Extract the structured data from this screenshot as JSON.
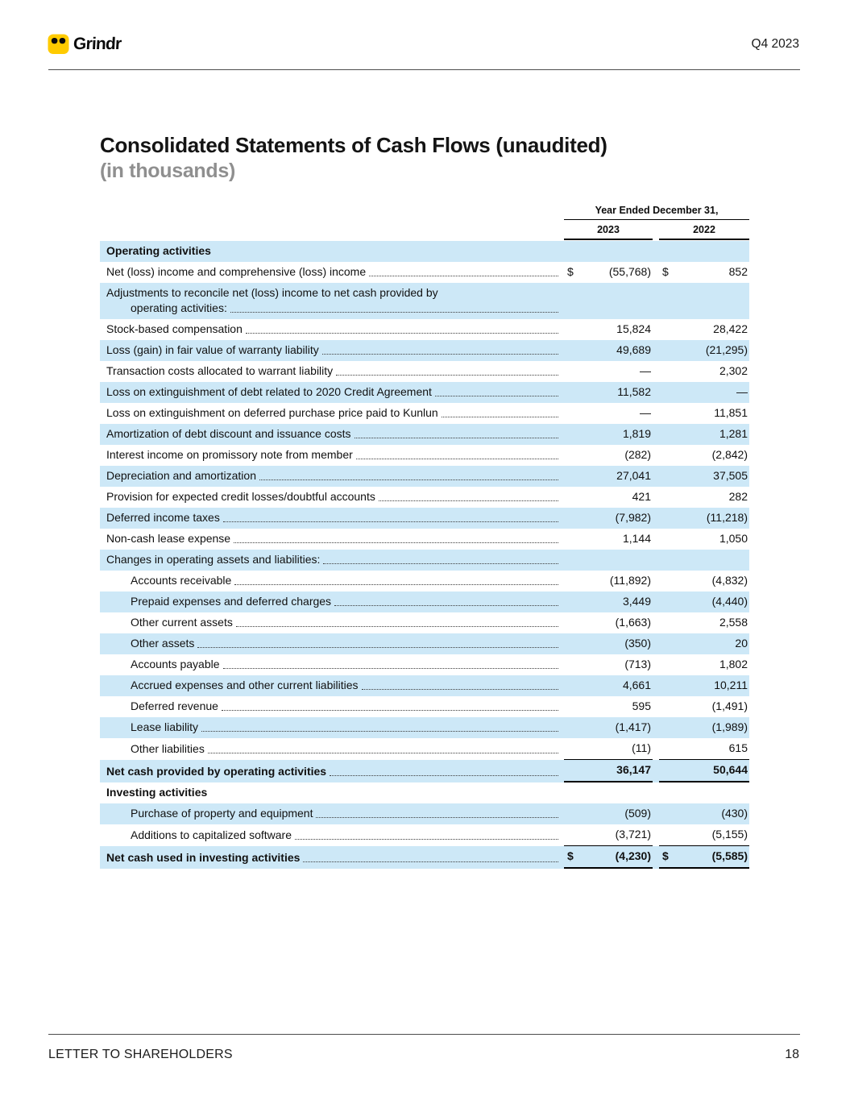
{
  "header": {
    "logo_text": "Grindr",
    "edition": "Q4 2023"
  },
  "title": {
    "main": "Consolidated Statements of Cash Flows (unaudited)",
    "sub": "(in thousands)"
  },
  "table": {
    "period_header": "Year Ended December 31,",
    "col_2023": "2023",
    "col_2022": "2022",
    "rows": [
      {
        "label": "Operating activities",
        "bold": true,
        "leader": false,
        "v2023": "",
        "v2022": ""
      },
      {
        "label": "Net (loss) income and comprehensive (loss) income",
        "dollar": true,
        "v2023": "(55,768)",
        "v2022": "852"
      },
      {
        "label": "Adjustments to reconcile net (loss) income to net cash provided by",
        "label2": "operating activities:",
        "v2023": "",
        "v2022": ""
      },
      {
        "label": "Stock-based compensation",
        "v2023": "15,824",
        "v2022": "28,422"
      },
      {
        "label": "Loss (gain) in fair value of warranty liability",
        "v2023": "49,689",
        "v2022": "(21,295)"
      },
      {
        "label": "Transaction costs allocated to warrant liability",
        "v2023": "—",
        "v2022": "2,302"
      },
      {
        "label": "Loss on extinguishment of debt related to 2020 Credit Agreement",
        "v2023": "11,582",
        "v2022": "—"
      },
      {
        "label": "Loss on extinguishment on deferred purchase price paid to Kunlun",
        "v2023": "—",
        "v2022": "11,851"
      },
      {
        "label": "Amortization of debt discount and issuance costs",
        "v2023": "1,819",
        "v2022": "1,281"
      },
      {
        "label": "Interest income on promissory note from member",
        "v2023": "(282)",
        "v2022": "(2,842)"
      },
      {
        "label": "Depreciation and amortization",
        "v2023": "27,041",
        "v2022": "37,505"
      },
      {
        "label": "Provision for expected credit losses/doubtful accounts",
        "v2023": "421",
        "v2022": "282"
      },
      {
        "label": "Deferred income taxes",
        "v2023": "(7,982)",
        "v2022": "(11,218)"
      },
      {
        "label": "Non-cash lease expense",
        "v2023": "1,144",
        "v2022": "1,050"
      },
      {
        "label": "Changes in operating assets and liabilities:",
        "v2023": "",
        "v2022": ""
      },
      {
        "label": "Accounts receivable",
        "indent": true,
        "v2023": "(11,892)",
        "v2022": "(4,832)"
      },
      {
        "label": "Prepaid expenses and deferred charges",
        "indent": true,
        "v2023": "3,449",
        "v2022": "(4,440)"
      },
      {
        "label": "Other current assets",
        "indent": true,
        "v2023": "(1,663)",
        "v2022": "2,558"
      },
      {
        "label": "Other assets",
        "indent": true,
        "v2023": "(350)",
        "v2022": "20"
      },
      {
        "label": "Accounts payable",
        "indent": true,
        "v2023": "(713)",
        "v2022": "1,802"
      },
      {
        "label": "Accrued expenses and other current liabilities",
        "indent": true,
        "v2023": "4,661",
        "v2022": "10,211"
      },
      {
        "label": "Deferred revenue",
        "indent": true,
        "v2023": "595",
        "v2022": "(1,491)"
      },
      {
        "label": "Lease liability",
        "indent": true,
        "v2023": "(1,417)",
        "v2022": "(1,989)"
      },
      {
        "label": "Other liabilities",
        "indent": true,
        "underline": true,
        "v2023": "(11)",
        "v2022": "615"
      },
      {
        "label": "Net cash provided by operating activities",
        "bold": true,
        "underline": true,
        "v2023": "36,147",
        "v2022": "50,644"
      },
      {
        "label": "Investing activities",
        "bold": true,
        "leader": false,
        "v2023": "",
        "v2022": ""
      },
      {
        "label": "Purchase of property and equipment",
        "indent": true,
        "v2023": "(509)",
        "v2022": "(430)"
      },
      {
        "label": "Additions to capitalized software",
        "indent": true,
        "underline": true,
        "v2023": "(3,721)",
        "v2022": "(5,155)"
      },
      {
        "label": "Net cash used in investing activities",
        "bold": true,
        "underline": true,
        "dollar": true,
        "v2023": "(4,230)",
        "v2022": "(5,585)"
      }
    ]
  },
  "footer": {
    "left": "LETTER TO SHAREHOLDERS",
    "page": "18"
  },
  "colors": {
    "highlight": "#cde8f7",
    "logo_yellow": "#ffcb00"
  }
}
